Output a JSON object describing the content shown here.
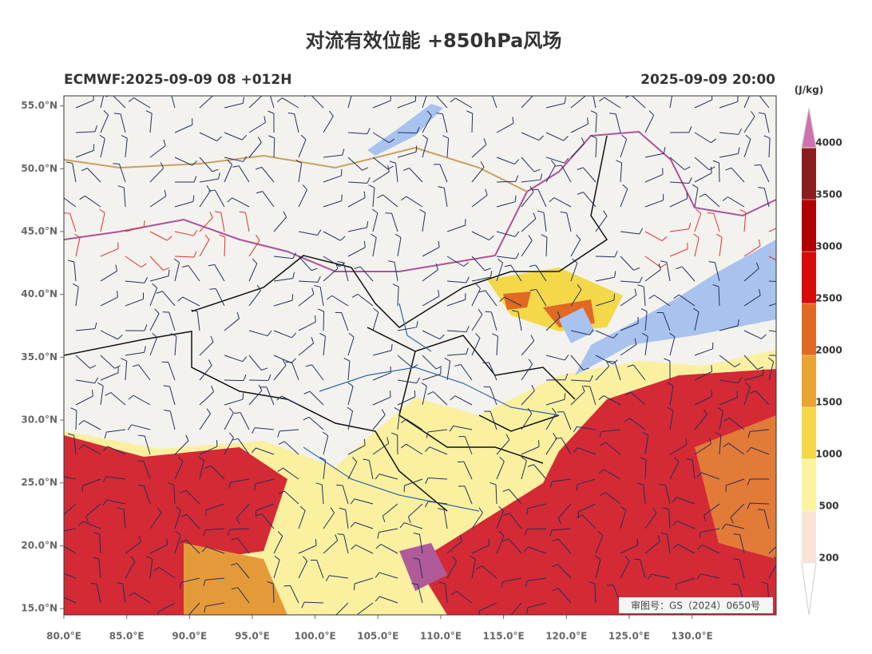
{
  "chart_data": {
    "type": "map",
    "title": "对流有效位能 +850hPa风场",
    "subtitle_left": "ECMWF:2025-09-09 08 +012H",
    "subtitle_right": "2025-09-09 20:00",
    "annotation": "审图号：GS（2024）0650号",
    "xlim": [
      80,
      136.7
    ],
    "ylim": [
      14.5,
      55.8
    ],
    "xticks": [
      {
        "value": 80,
        "label": "80.0°E"
      },
      {
        "value": 85,
        "label": "85.0°E"
      },
      {
        "value": 90,
        "label": "90.0°E"
      },
      {
        "value": 95,
        "label": "95.0°E"
      },
      {
        "value": 100,
        "label": "100.0°E"
      },
      {
        "value": 105,
        "label": "105.0°E"
      },
      {
        "value": 110,
        "label": "110.0°E"
      },
      {
        "value": 115,
        "label": "115.0°E"
      },
      {
        "value": 120,
        "label": "120.0°E"
      },
      {
        "value": 125,
        "label": "125.0°E"
      },
      {
        "value": 130,
        "label": "130.0°E"
      }
    ],
    "yticks": [
      {
        "value": 15,
        "label": "15.0°N"
      },
      {
        "value": 20,
        "label": "20.0°N"
      },
      {
        "value": 25,
        "label": "25.0°N"
      },
      {
        "value": 30,
        "label": "30.0°N"
      },
      {
        "value": 35,
        "label": "35.0°N"
      },
      {
        "value": 40,
        "label": "40.0°N"
      },
      {
        "value": 45,
        "label": "45.0°N"
      },
      {
        "value": 50,
        "label": "50.0°N"
      },
      {
        "value": 55,
        "label": "55.0°N"
      }
    ],
    "colorbar": {
      "unit": "(J/kg)",
      "extend": "both",
      "levels": [
        200,
        500,
        1000,
        1500,
        2000,
        2500,
        3000,
        3500,
        4000
      ],
      "colors": [
        "#ffffff",
        "#fbe3d8",
        "#faf4a0",
        "#f4d84a",
        "#e9a432",
        "#e06a22",
        "#d80b0b",
        "#b00000",
        "#8a1e1e",
        "#d070b0"
      ]
    }
  }
}
